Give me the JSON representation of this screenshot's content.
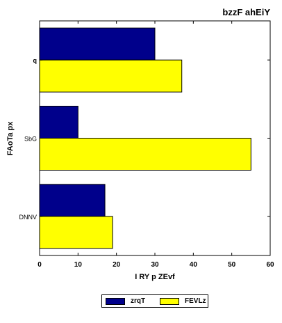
{
  "chart_data": {
    "type": "bar",
    "orientation": "horizontal",
    "title": "bzzF ahEiY",
    "xlabel": "I RY p ZEvf",
    "ylabel": "FAoTa px",
    "categories": [
      "q",
      "SbG",
      "DNNV"
    ],
    "series": [
      {
        "name": "zrqT",
        "color": "#00008b",
        "values": [
          30,
          10,
          17
        ]
      },
      {
        "name": "FEVLz",
        "color": "#ffff00",
        "values": [
          37,
          55,
          19
        ]
      }
    ],
    "xlim": [
      0,
      60
    ],
    "xticks": [
      "0",
      "10",
      "20",
      "30",
      "40",
      "50",
      "60"
    ],
    "grid": false,
    "legend_position": "bottom-center"
  }
}
